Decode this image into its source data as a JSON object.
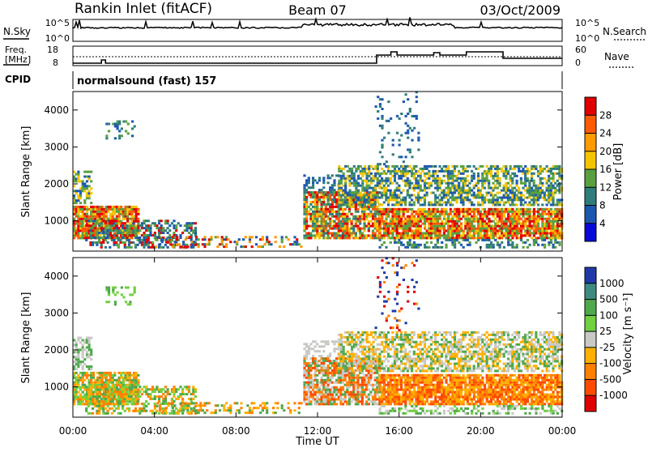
{
  "header": {
    "station": "Rankin Inlet (fitACF)",
    "beam": "Beam 07",
    "date": "03/Oct/2009"
  },
  "noise_panel": {
    "left_label": "N.Sky",
    "left_ticks": [
      "10^5",
      "10^0"
    ],
    "right_ticks": [
      "10^5",
      "10^0"
    ],
    "right_label": "N.Search"
  },
  "freq_panel": {
    "left_label_1": "Freq.",
    "left_label_2": "[MHz]",
    "left_ticks": [
      "18",
      "8"
    ],
    "right_ticks": [
      "60",
      "0"
    ],
    "right_label": "Nave"
  },
  "cpid_panel": {
    "label": "CPID",
    "text": "normalsound (fast) 157"
  },
  "chart_data": [
    {
      "type": "heatmap",
      "name": "power",
      "ylabel": "Slant Range [km]",
      "y_ticks": [
        "4000",
        "3000",
        "2000",
        "1000"
      ],
      "y_tick_values": [
        4000,
        3000,
        2000,
        1000
      ],
      "ylim": [
        180,
        4500
      ],
      "colorbar": {
        "label": "Power [dB]",
        "ticks": [
          "28",
          "24",
          "20",
          "16",
          "12",
          "8",
          "4"
        ],
        "colors": [
          "#e00000",
          "#ff5a00",
          "#ff9a00",
          "#f5c400",
          "#5aa040",
          "#2f7d7a",
          "#1c58b0",
          "#0a0ad8"
        ]
      }
    },
    {
      "type": "heatmap",
      "name": "velocity",
      "ylabel": "Slant Range [km]",
      "y_ticks": [
        "4000",
        "3000",
        "2000",
        "1000"
      ],
      "y_tick_values": [
        4000,
        3000,
        2000,
        1000
      ],
      "ylim": [
        180,
        4500
      ],
      "xlabel": "Time UT",
      "x_ticks": [
        "00:00",
        "04:00",
        "08:00",
        "12:00",
        "16:00",
        "20:00",
        "00:00"
      ],
      "colorbar": {
        "label": "Velocity [m s⁻¹]",
        "ticks": [
          "1000",
          "500",
          "100",
          "25",
          "-25",
          "-100",
          "-500",
          "-1000"
        ],
        "colors": [
          "#1f3aa8",
          "#3f8a80",
          "#4fa84c",
          "#70d040",
          "#c8c8c4",
          "#ffb000",
          "#ff8000",
          "#ff4a00",
          "#e00000"
        ]
      }
    }
  ],
  "regions": [
    {
      "t0": 0.0,
      "t1": 3.2,
      "r0": 500,
      "r1": 1400,
      "colors": [
        "#e00000",
        "#ff5a00",
        "#f5c400",
        "#5aa040"
      ],
      "vcolors": [
        "#ff8000",
        "#70d040",
        "#4fa84c",
        "#ffb000"
      ],
      "density": 0.85
    },
    {
      "t0": 0.0,
      "t1": 0.9,
      "r0": 1450,
      "r1": 2300,
      "colors": [
        "#f5c400",
        "#5aa040",
        "#1c58b0"
      ],
      "vcolors": [
        "#c8c8c4",
        "#4fa84c"
      ],
      "density": 0.55
    },
    {
      "t0": 0.6,
      "t1": 6.0,
      "r0": 250,
      "r1": 1000,
      "colors": [
        "#e00000",
        "#5aa040",
        "#1c58b0",
        "#2f7d7a"
      ],
      "vcolors": [
        "#ff8000",
        "#4fa84c",
        "#70d040",
        "#ffb000"
      ],
      "density": 0.5
    },
    {
      "t0": 1.6,
      "t1": 3.0,
      "r0": 3200,
      "r1": 3700,
      "colors": [
        "#2f7d7a",
        "#1c58b0",
        "#5aa040"
      ],
      "vcolors": [
        "#70d040",
        "#4fa84c"
      ],
      "density": 0.25
    },
    {
      "t0": 4.0,
      "t1": 11.2,
      "r0": 200,
      "r1": 550,
      "colors": [
        "#e00000",
        "#5aa040",
        "#1c58b0",
        "#ff9a00"
      ],
      "vcolors": [
        "#ff8000",
        "#4fa84c",
        "#ffb000"
      ],
      "density": 0.35
    },
    {
      "t0": 11.3,
      "t1": 15.0,
      "r0": 500,
      "r1": 1800,
      "colors": [
        "#e00000",
        "#ff5a00",
        "#f5c400",
        "#5aa040",
        "#2f7d7a"
      ],
      "vcolors": [
        "#ff8000",
        "#ff4a00",
        "#4fa84c",
        "#c8c8c4"
      ],
      "density": 0.8
    },
    {
      "t0": 11.3,
      "t1": 13.0,
      "r0": 1800,
      "r1": 2200,
      "colors": [
        "#2f7d7a",
        "#1c58b0"
      ],
      "vcolors": [
        "#c8c8c4"
      ],
      "density": 0.4
    },
    {
      "t0": 13.0,
      "t1": 24.0,
      "r0": 1400,
      "r1": 2500,
      "colors": [
        "#5aa040",
        "#2f7d7a",
        "#1c58b0",
        "#f5c400"
      ],
      "vcolors": [
        "#c8c8c4",
        "#ffb000",
        "#4fa84c"
      ],
      "density": 0.6
    },
    {
      "t0": 15.0,
      "t1": 24.0,
      "r0": 500,
      "r1": 1300,
      "colors": [
        "#e00000",
        "#ff5a00",
        "#f5c400",
        "#5aa040"
      ],
      "vcolors": [
        "#ff8000",
        "#ff4a00",
        "#ffb000"
      ],
      "density": 0.85
    },
    {
      "t0": 15.0,
      "t1": 24.0,
      "r0": 250,
      "r1": 500,
      "colors": [
        "#5aa040",
        "#2f7d7a",
        "#1c58b0"
      ],
      "vcolors": [
        "#4fa84c",
        "#70d040",
        "#c8c8c4"
      ],
      "density": 0.4
    },
    {
      "t0": 14.8,
      "t1": 17.0,
      "r0": 2500,
      "r1": 4500,
      "colors": [
        "#1c58b0",
        "#2f7d7a"
      ],
      "vcolors": [
        "#ff8000",
        "#e00000",
        "#1f3aa8"
      ],
      "density": 0.12
    }
  ]
}
